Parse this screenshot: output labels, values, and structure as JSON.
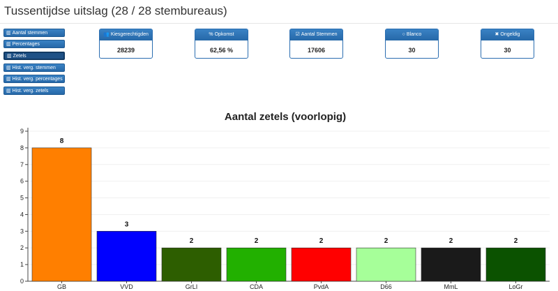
{
  "header": {
    "title": "Tussentijdse uitslag (28 / 28 stembureaus)"
  },
  "nav": [
    {
      "label": "Aantal stemmen",
      "icon": "bar-chart-icon",
      "active": false
    },
    {
      "label": "Percentages",
      "icon": "bar-chart-icon",
      "active": false
    },
    {
      "label": "Zetels",
      "icon": "bar-chart-icon",
      "active": true
    },
    {
      "label": "Hist. verg. stemmen",
      "icon": "bar-chart-icon",
      "active": false
    },
    {
      "label": "Hist. verg. percentages",
      "icon": "bar-chart-icon",
      "active": false
    },
    {
      "label": "Hist. verg. zetels",
      "icon": "bar-chart-icon",
      "active": false
    }
  ],
  "stats": [
    {
      "label": "Kiesgerechtigden",
      "value": "28239",
      "icon": "users-icon",
      "glyph": "👥"
    },
    {
      "label": "Opkomst",
      "value": "62,56 %",
      "icon": "percent-icon",
      "glyph": "%"
    },
    {
      "label": "Aantal Stemmen",
      "value": "17606",
      "icon": "checkbox-icon",
      "glyph": "☑"
    },
    {
      "label": "Blanco",
      "value": "30",
      "icon": "circle-icon",
      "glyph": "○"
    },
    {
      "label": "Ongeldig",
      "value": "30",
      "icon": "cross-icon",
      "glyph": "✖"
    }
  ],
  "chart_data": {
    "type": "bar",
    "title": "Aantal zetels (voorlopig)",
    "categories": [
      "GB",
      "VVD",
      "GrLI",
      "CDA",
      "PvdA",
      "D66",
      "MmL",
      "LoGr"
    ],
    "values": [
      8,
      3,
      2,
      2,
      2,
      2,
      2,
      2
    ],
    "colors": [
      "#ff7f00",
      "#0000ff",
      "#2d5e00",
      "#22b000",
      "#ff0000",
      "#a6ff99",
      "#1a1a1a",
      "#0b5200"
    ],
    "ylim": [
      0,
      9
    ],
    "yticks": [
      "0",
      "1",
      "2",
      "3",
      "4",
      "5",
      "6",
      "7",
      "8",
      "9"
    ],
    "grid": true,
    "data_labels": true
  }
}
